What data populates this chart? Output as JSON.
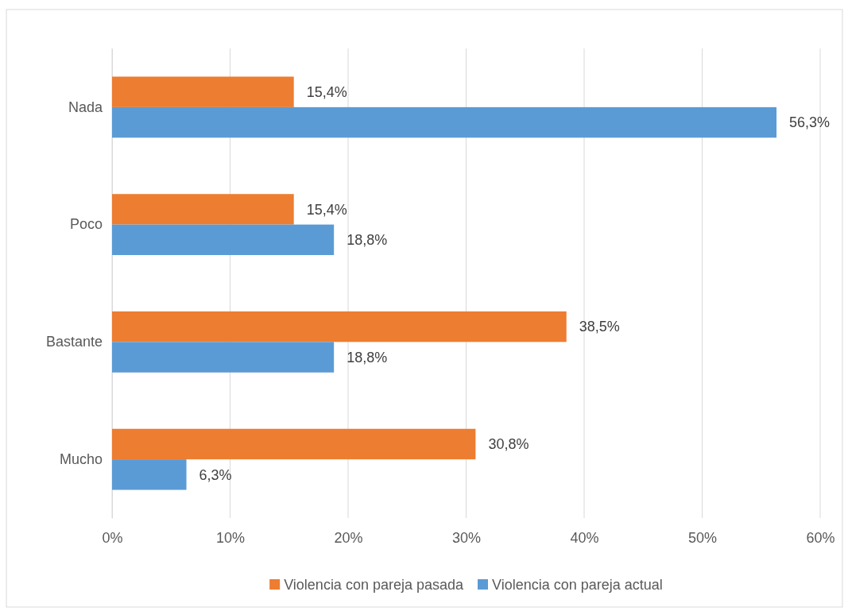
{
  "chart_data": {
    "type": "bar",
    "orientation": "horizontal",
    "categories": [
      "Nada",
      "Poco",
      "Bastante",
      "Mucho"
    ],
    "series": [
      {
        "name": "Violencia con pareja pasada",
        "color": "#ed7d31",
        "values": [
          15.4,
          15.4,
          38.5,
          30.8
        ],
        "value_labels": [
          "15,4%",
          "15,4%",
          "38,5%",
          "30,8%"
        ]
      },
      {
        "name": "Violencia con pareja actual",
        "color": "#5b9bd5",
        "values": [
          56.3,
          18.8,
          18.8,
          6.3
        ],
        "value_labels": [
          "56,3%",
          "18,8%",
          "18,8%",
          "6,3%"
        ]
      }
    ],
    "xlim": [
      0,
      60
    ],
    "xticks": [
      {
        "value": 0,
        "label": "0%"
      },
      {
        "value": 10,
        "label": "10%"
      },
      {
        "value": 20,
        "label": "20%"
      },
      {
        "value": 30,
        "label": "30%"
      },
      {
        "value": 40,
        "label": "40%"
      },
      {
        "value": 50,
        "label": "50%"
      },
      {
        "value": 60,
        "label": "60%"
      }
    ],
    "grid": "x",
    "legend": "bottom"
  }
}
